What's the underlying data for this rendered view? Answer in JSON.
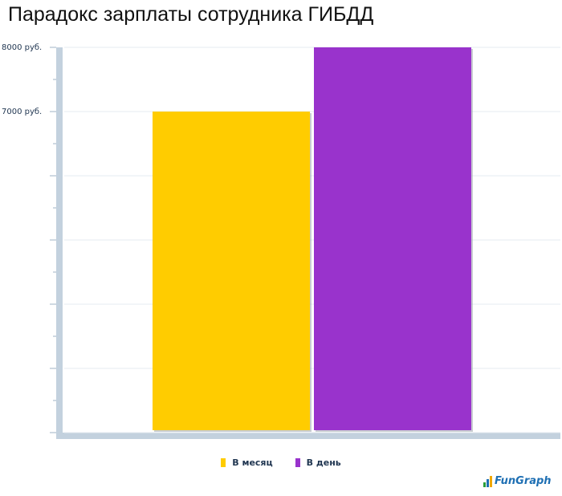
{
  "title": "Парадокс зарплаты сотрудника ГИБДД",
  "chart_data": {
    "type": "bar",
    "categories": [
      "В месяц",
      "В день"
    ],
    "values": [
      7000,
      8000
    ],
    "ylim": [
      2000,
      8000
    ],
    "yticks": [
      2000,
      3000,
      4000,
      5000,
      6000,
      7000,
      8000
    ],
    "ytick_labels": [
      "",
      "",
      "",
      "",
      "",
      "7000 руб.",
      "8000 руб."
    ],
    "colors": [
      "#ffcc00",
      "#9933cc"
    ],
    "grid": true,
    "legend_position": "bottom-center"
  },
  "legend": [
    {
      "label": "В месяц",
      "color": "#ffcc00"
    },
    {
      "label": "В день",
      "color": "#9933cc"
    }
  ],
  "logo": {
    "text": "FunGraph"
  }
}
